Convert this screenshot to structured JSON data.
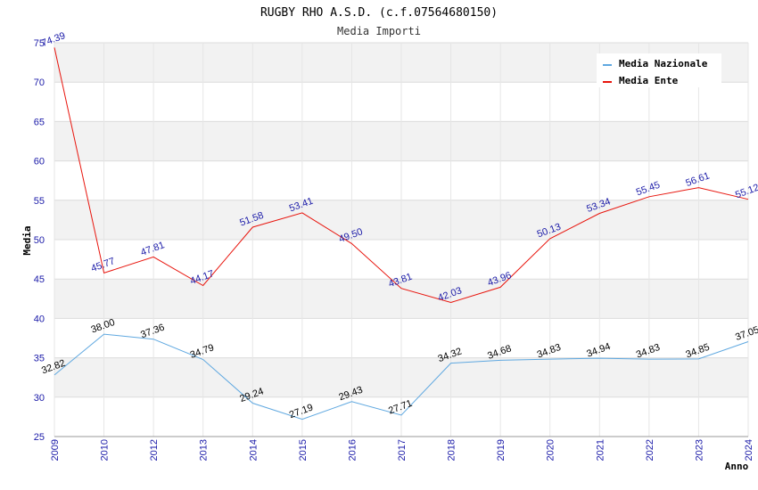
{
  "chart_data": {
    "type": "line",
    "title": "RUGBY RHO A.S.D. (c.f.07564680150)",
    "subtitle": "Media Importi",
    "xlabel": "Anno",
    "ylabel": "Media",
    "ylim": [
      25,
      75
    ],
    "yticks": [
      25,
      30,
      35,
      40,
      45,
      50,
      55,
      60,
      65,
      70,
      75
    ],
    "grid": true,
    "legend_position": "top-right",
    "categories": [
      "2009",
      "2010",
      "2012",
      "2013",
      "2014",
      "2015",
      "2016",
      "2017",
      "2018",
      "2019",
      "2020",
      "2021",
      "2022",
      "2023",
      "2024"
    ],
    "series": [
      {
        "name": "Media Nazionale",
        "color": "#5fa8e0",
        "label_color": "#000000",
        "values": [
          32.82,
          38.0,
          37.36,
          34.79,
          29.24,
          27.19,
          29.43,
          27.71,
          34.32,
          34.68,
          34.83,
          34.94,
          34.83,
          34.85,
          37.05
        ]
      },
      {
        "name": "Media Ente",
        "color": "#e8140c",
        "label_color": "#1a1aa8",
        "values": [
          74.39,
          45.77,
          47.81,
          44.17,
          51.58,
          53.41,
          49.5,
          43.81,
          42.03,
          43.96,
          50.13,
          53.34,
          55.45,
          56.61,
          55.12
        ]
      }
    ]
  }
}
